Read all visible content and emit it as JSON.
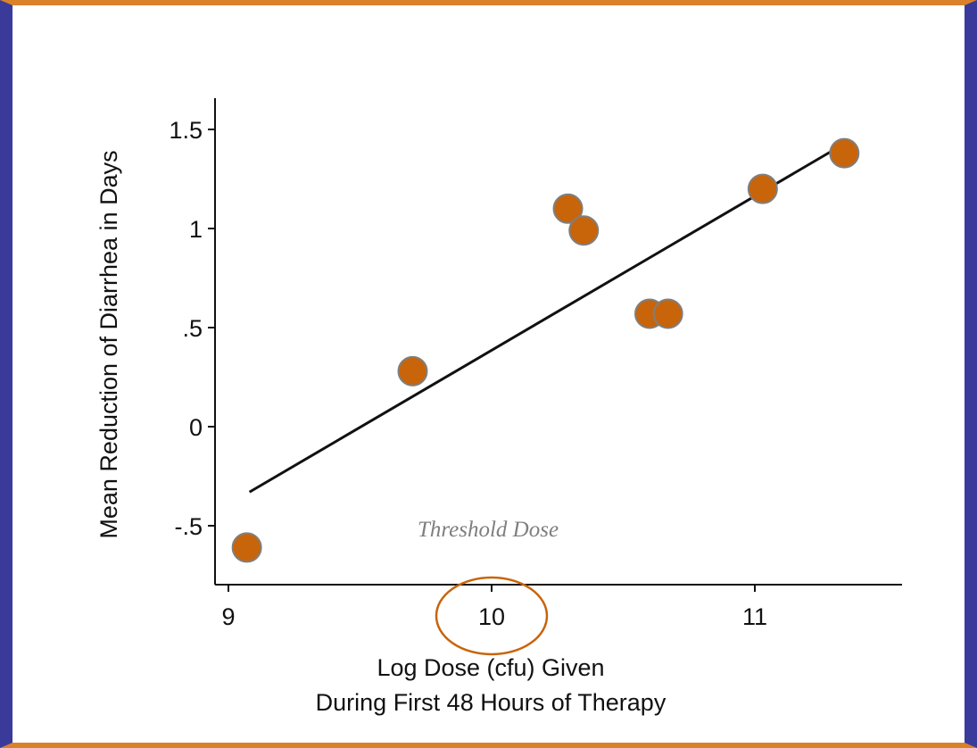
{
  "chart_data": {
    "type": "scatter",
    "title": "",
    "xlabel_line1": "Log Dose (cfu) Given",
    "xlabel_line2": "During First 48 Hours of Therapy",
    "ylabel": "Mean Reduction of Diarrhea in Days",
    "xlim": [
      9,
      11.55
    ],
    "ylim": [
      -0.75,
      1.6
    ],
    "x_ticks": [
      9,
      10,
      11
    ],
    "x_tick_labels": [
      "9",
      "10",
      "11"
    ],
    "y_ticks": [
      1.5,
      1,
      0.5,
      0,
      -0.5
    ],
    "y_tick_labels": [
      "1.5",
      "1",
      ".5",
      "0",
      "-.5"
    ],
    "series": [
      {
        "points": [
          {
            "x": 9.07,
            "y": -0.61
          },
          {
            "x": 9.7,
            "y": 0.28
          },
          {
            "x": 10.29,
            "y": 1.1
          },
          {
            "x": 10.35,
            "y": 0.99
          },
          {
            "x": 10.6,
            "y": 0.57
          },
          {
            "x": 10.67,
            "y": 0.57
          },
          {
            "x": 11.03,
            "y": 1.2
          },
          {
            "x": 11.34,
            "y": 1.38
          }
        ]
      }
    ],
    "trendline": {
      "x1": 9.08,
      "y1": -0.33,
      "x2": 11.33,
      "y2": 1.42
    },
    "annotation": {
      "text": "Threshold Dose",
      "x": 10.0
    },
    "marker_color": "#c8640a",
    "marker_edge_color": "#7f7f7f",
    "highlight_color": "#c8640a",
    "grid": false
  }
}
